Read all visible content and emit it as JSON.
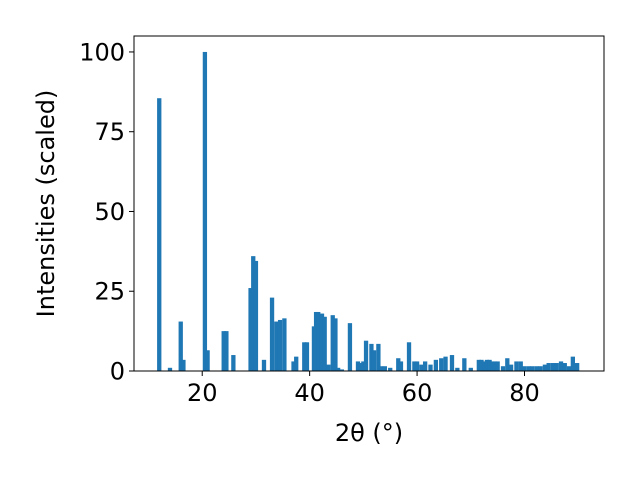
{
  "chart_data": {
    "type": "bar",
    "title": "",
    "xlabel": "2θ (°)",
    "ylabel": "Intensities (scaled)",
    "xlim": [
      7.3,
      94.8
    ],
    "ylim": [
      0,
      105
    ],
    "xticks": [
      20,
      40,
      60,
      80
    ],
    "yticks": [
      0,
      25,
      50,
      75,
      100
    ],
    "grid": false,
    "color": "#1f77b4",
    "bar_width": 0.8,
    "series": [
      {
        "x": [
          12.0,
          14.0,
          16.0,
          16.5,
          20.5,
          21.0,
          24.0,
          24.5,
          25.8,
          29.0,
          29.5,
          30.0,
          31.5,
          33.0,
          33.8,
          34.5,
          35.3,
          37.0,
          37.5,
          39.0,
          39.5,
          40.8,
          41.2,
          41.6,
          42.3,
          42.8,
          43.5,
          44.3,
          44.8,
          45.3,
          46.0,
          47.5,
          49.0,
          49.5,
          50.0,
          50.5,
          51.5,
          52.0,
          52.8,
          53.3,
          54.0,
          55.0,
          56.5,
          57.0,
          58.5,
          59.5,
          60.0,
          60.8,
          61.5,
          62.5,
          63.5,
          64.5,
          65.3,
          66.5,
          67.5,
          68.8,
          70.0,
          71.5,
          72.0,
          72.5,
          73.0,
          73.5,
          74.0,
          74.5,
          75.0,
          76.0,
          76.8,
          77.5,
          78.5,
          79.3,
          80.0,
          80.8,
          81.5,
          82.3,
          83.0,
          83.8,
          84.5,
          85.3,
          86.0,
          86.8,
          87.5,
          88.3,
          89.0,
          89.8
        ],
        "values": [
          85.5,
          1.0,
          15.5,
          3.5,
          100.0,
          6.5,
          12.5,
          12.5,
          5.0,
          26.0,
          36.0,
          34.5,
          3.5,
          23.0,
          15.5,
          16.0,
          16.5,
          3.0,
          4.5,
          9.0,
          9.0,
          14.0,
          18.5,
          18.5,
          18.0,
          17.0,
          2.0,
          17.5,
          16.5,
          1.0,
          0.5,
          15.0,
          3.0,
          2.5,
          3.0,
          9.5,
          8.5,
          6.5,
          8.5,
          1.5,
          1.5,
          1.0,
          4.0,
          3.0,
          9.0,
          3.0,
          3.0,
          2.0,
          3.0,
          2.0,
          3.5,
          4.0,
          4.5,
          5.0,
          1.0,
          4.0,
          1.0,
          3.5,
          3.5,
          3.0,
          3.5,
          3.5,
          3.0,
          3.0,
          3.0,
          1.5,
          4.0,
          2.0,
          3.0,
          3.0,
          1.5,
          1.5,
          1.5,
          1.5,
          1.5,
          2.0,
          2.5,
          2.5,
          2.5,
          3.0,
          2.5,
          1.5,
          4.5,
          2.5
        ]
      }
    ]
  }
}
